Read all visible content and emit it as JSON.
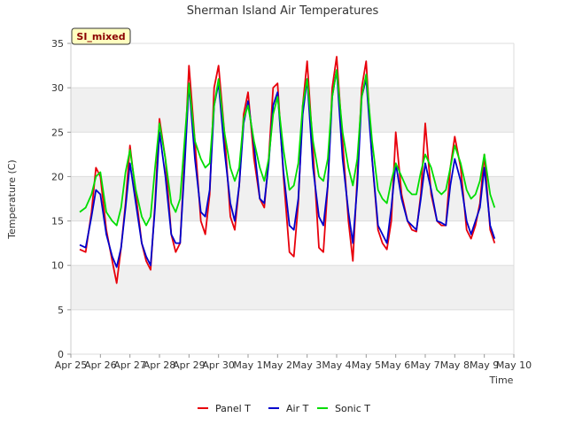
{
  "chart_data": {
    "type": "line",
    "title": "Sherman Island Air Temperatures",
    "xlabel": "Time",
    "ylabel": "Temperature (C)",
    "badge": "SI_mixed",
    "ylim": [
      0,
      35
    ],
    "yticks": [
      0,
      5,
      10,
      15,
      20,
      25,
      30,
      35
    ],
    "xlim": [
      0,
      15
    ],
    "xticks": [
      "Apr 25",
      "Apr 26",
      "Apr 27",
      "Apr 28",
      "Apr 29",
      "Apr 30",
      "May 1",
      "May 2",
      "May 3",
      "May 4",
      "May 5",
      "May 6",
      "May 7",
      "May 8",
      "May 9",
      "May 10"
    ],
    "grid": "horizontal bands",
    "legend": "bottom",
    "x_unit_note": "x = days since Apr 25 00:00",
    "series": [
      {
        "name": "Panel T",
        "color": "#e8000b",
        "x": [
          0.3,
          0.5,
          0.7,
          0.85,
          1.0,
          1.2,
          1.4,
          1.55,
          1.7,
          1.85,
          2.0,
          2.2,
          2.4,
          2.55,
          2.7,
          2.85,
          3.0,
          3.2,
          3.4,
          3.55,
          3.7,
          3.85,
          4.0,
          4.2,
          4.4,
          4.55,
          4.7,
          4.85,
          5.0,
          5.2,
          5.4,
          5.55,
          5.7,
          5.85,
          6.0,
          6.2,
          6.4,
          6.55,
          6.7,
          6.85,
          7.0,
          7.2,
          7.4,
          7.55,
          7.7,
          7.85,
          8.0,
          8.2,
          8.4,
          8.55,
          8.7,
          8.85,
          9.0,
          9.2,
          9.4,
          9.55,
          9.7,
          9.85,
          10.0,
          10.2,
          10.4,
          10.55,
          10.7,
          10.85,
          11.0,
          11.2,
          11.4,
          11.55,
          11.7,
          11.85,
          12.0,
          12.2,
          12.4,
          12.55,
          12.7,
          12.85,
          13.0,
          13.2,
          13.4,
          13.55,
          13.7,
          13.85,
          14.0,
          14.2,
          14.35
        ],
        "y": [
          11.8,
          11.5,
          16.0,
          21.0,
          20.0,
          14.0,
          10.5,
          8.0,
          12.0,
          17.0,
          23.5,
          18.0,
          12.5,
          10.5,
          9.5,
          17.0,
          26.5,
          22.0,
          13.5,
          11.5,
          12.5,
          22.0,
          32.5,
          24.0,
          15.0,
          13.5,
          18.0,
          30.0,
          32.5,
          25.0,
          15.5,
          14.0,
          19.0,
          27.0,
          29.5,
          22.0,
          17.5,
          16.5,
          22.0,
          30.0,
          30.5,
          20.0,
          11.5,
          11.0,
          17.0,
          28.0,
          33.0,
          23.0,
          12.0,
          11.5,
          19.0,
          30.0,
          33.5,
          24.0,
          15.0,
          10.5,
          20.0,
          30.0,
          33.0,
          22.0,
          14.0,
          12.5,
          11.8,
          15.0,
          25.0,
          18.0,
          15.0,
          14.0,
          13.8,
          18.0,
          26.0,
          18.0,
          15.0,
          14.5,
          14.5,
          21.0,
          24.5,
          21.0,
          14.0,
          13.0,
          14.5,
          17.0,
          22.5,
          14.0,
          12.5
        ]
      },
      {
        "name": "Air T",
        "color": "#0000cc",
        "x": [
          0.3,
          0.5,
          0.7,
          0.85,
          1.0,
          1.2,
          1.4,
          1.55,
          1.7,
          1.85,
          2.0,
          2.2,
          2.4,
          2.55,
          2.7,
          2.85,
          3.0,
          3.2,
          3.4,
          3.55,
          3.7,
          3.85,
          4.0,
          4.2,
          4.4,
          4.55,
          4.7,
          4.85,
          5.0,
          5.2,
          5.4,
          5.55,
          5.7,
          5.85,
          6.0,
          6.2,
          6.4,
          6.55,
          6.7,
          6.85,
          7.0,
          7.2,
          7.4,
          7.55,
          7.7,
          7.85,
          8.0,
          8.2,
          8.4,
          8.55,
          8.7,
          8.85,
          9.0,
          9.2,
          9.4,
          9.55,
          9.7,
          9.85,
          10.0,
          10.2,
          10.4,
          10.55,
          10.7,
          10.85,
          11.0,
          11.2,
          11.4,
          11.55,
          11.7,
          11.85,
          12.0,
          12.2,
          12.4,
          12.55,
          12.7,
          12.85,
          13.0,
          13.2,
          13.4,
          13.55,
          13.7,
          13.85,
          14.0,
          14.2,
          14.35
        ],
        "y": [
          12.3,
          12.0,
          15.5,
          18.5,
          18.0,
          13.5,
          11.0,
          9.8,
          12.0,
          16.5,
          21.5,
          17.0,
          12.5,
          11.0,
          10.0,
          16.5,
          25.0,
          20.0,
          13.5,
          12.5,
          12.5,
          21.0,
          30.5,
          22.0,
          16.0,
          15.5,
          18.5,
          28.0,
          30.5,
          23.0,
          17.0,
          15.0,
          19.0,
          26.0,
          28.5,
          23.5,
          17.5,
          17.0,
          21.5,
          28.0,
          29.5,
          20.5,
          14.5,
          14.0,
          17.5,
          27.0,
          31.0,
          21.0,
          15.5,
          14.5,
          19.0,
          29.0,
          32.0,
          22.0,
          16.0,
          12.5,
          19.0,
          29.0,
          31.0,
          22.0,
          14.5,
          13.5,
          12.5,
          16.5,
          21.5,
          17.5,
          15.0,
          14.5,
          14.0,
          17.5,
          21.5,
          18.5,
          15.0,
          14.8,
          14.5,
          19.0,
          22.0,
          19.5,
          15.0,
          13.5,
          15.0,
          16.5,
          21.0,
          14.5,
          13.0
        ]
      },
      {
        "name": "Sonic T",
        "color": "#00dd00",
        "x": [
          0.3,
          0.5,
          0.7,
          0.85,
          1.0,
          1.2,
          1.4,
          1.55,
          1.7,
          1.85,
          2.0,
          2.2,
          2.4,
          2.55,
          2.7,
          2.85,
          3.0,
          3.2,
          3.4,
          3.55,
          3.7,
          3.85,
          4.0,
          4.2,
          4.4,
          4.55,
          4.7,
          4.85,
          5.0,
          5.2,
          5.4,
          5.55,
          5.7,
          5.85,
          6.0,
          6.2,
          6.4,
          6.55,
          6.7,
          6.85,
          7.0,
          7.2,
          7.4,
          7.55,
          7.7,
          7.85,
          8.0,
          8.2,
          8.4,
          8.55,
          8.7,
          8.85,
          9.0,
          9.2,
          9.4,
          9.55,
          9.7,
          9.85,
          10.0,
          10.2,
          10.4,
          10.55,
          10.7,
          10.85,
          11.0,
          11.2,
          11.4,
          11.55,
          11.7,
          11.85,
          12.0,
          12.2,
          12.4,
          12.55,
          12.7,
          12.85,
          13.0,
          13.2,
          13.4,
          13.55,
          13.7,
          13.85,
          14.0,
          14.2,
          14.35
        ],
        "y": [
          16.0,
          16.5,
          18.0,
          20.0,
          20.5,
          16.0,
          15.0,
          14.5,
          16.5,
          20.5,
          23.0,
          18.5,
          15.5,
          14.5,
          15.5,
          21.0,
          26.0,
          22.0,
          17.0,
          16.0,
          17.5,
          24.0,
          30.5,
          24.0,
          22.0,
          21.0,
          21.5,
          28.0,
          31.0,
          25.0,
          21.0,
          19.5,
          21.0,
          26.5,
          28.0,
          24.0,
          21.0,
          19.5,
          22.0,
          27.0,
          29.0,
          23.0,
          18.5,
          19.0,
          21.5,
          28.0,
          31.0,
          24.0,
          20.0,
          19.5,
          22.0,
          29.0,
          32.0,
          25.0,
          21.0,
          19.0,
          22.0,
          29.0,
          31.5,
          24.0,
          18.5,
          17.5,
          17.0,
          19.5,
          21.5,
          20.0,
          18.5,
          18.0,
          18.0,
          20.5,
          22.5,
          21.0,
          18.5,
          18.0,
          18.5,
          21.0,
          23.5,
          21.5,
          18.5,
          17.5,
          18.0,
          19.5,
          22.5,
          18.0,
          16.5
        ]
      }
    ]
  }
}
